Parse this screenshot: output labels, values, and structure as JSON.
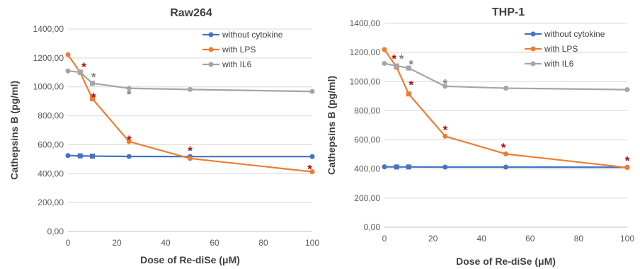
{
  "chart_data": [
    {
      "type": "line",
      "title": "Raw264",
      "xlabel": "Dose of Re-diSe (μM)",
      "ylabel": "Cathepsins  B (pg/ml)",
      "xlim": [
        0,
        100
      ],
      "ylim": [
        0,
        1400
      ],
      "xticks": [
        "0",
        "20",
        "40",
        "60",
        "80",
        "100"
      ],
      "yticks": [
        "0,00",
        "200,00",
        "400,00",
        "600,00",
        "800,00",
        "1000,00",
        "1200,00",
        "1400,00"
      ],
      "legend_position": "top-right",
      "series": [
        {
          "name": "without cytokine",
          "color": "#4472C4",
          "x": [
            0,
            5,
            10,
            25,
            50,
            100
          ],
          "y": [
            525,
            523,
            521,
            519,
            518,
            518
          ]
        },
        {
          "name": "with LPS",
          "color": "#ED7D31",
          "x": [
            0,
            5,
            10,
            25,
            50,
            100
          ],
          "y": [
            1222,
            1100,
            918,
            622,
            505,
            413
          ]
        },
        {
          "name": "with IL6",
          "color": "#A5A5A5",
          "x": [
            0,
            5,
            10,
            25,
            50,
            100
          ],
          "y": [
            1110,
            1102,
            1025,
            990,
            982,
            968
          ]
        }
      ],
      "annotations": [
        {
          "text": "*",
          "x": 6.5,
          "y": 1155,
          "color": "#C00000"
        },
        {
          "text": "*",
          "x": 10.5,
          "y": 1085,
          "color": "#808080"
        },
        {
          "text": "*",
          "x": 10.5,
          "y": 945,
          "color": "#C00000"
        },
        {
          "text": "*",
          "x": 25,
          "y": 965,
          "color": "#808080"
        },
        {
          "text": "*",
          "x": 25,
          "y": 650,
          "color": "#C00000"
        },
        {
          "text": "*",
          "x": 50,
          "y": 575,
          "color": "#C00000"
        },
        {
          "text": "*",
          "x": 99,
          "y": 448,
          "color": "#C00000"
        }
      ]
    },
    {
      "type": "line",
      "title": "THP-1",
      "xlabel": "Dose of Re-diSe (μM)",
      "ylabel": "Cathepsins  B (pg/ml)",
      "xlim": [
        0,
        100
      ],
      "ylim": [
        0,
        1400
      ],
      "xticks": [
        "0",
        "20",
        "40",
        "60",
        "80",
        "100"
      ],
      "yticks": [
        "0,00",
        "200,00",
        "400,00",
        "600,00",
        "800,00",
        "1000,00",
        "1200,00",
        "1400,00"
      ],
      "legend_position": "top-right",
      "series": [
        {
          "name": "without cytokine",
          "color": "#4472C4",
          "x": [
            0,
            5,
            10,
            25,
            50,
            100
          ],
          "y": [
            415,
            414,
            414,
            413,
            413,
            412
          ]
        },
        {
          "name": "with LPS",
          "color": "#ED7D31",
          "x": [
            0,
            5,
            10,
            25,
            50,
            100
          ],
          "y": [
            1220,
            1100,
            915,
            625,
            503,
            410
          ]
        },
        {
          "name": "with IL6",
          "color": "#A5A5A5",
          "x": [
            0,
            5,
            10,
            25,
            50,
            100
          ],
          "y": [
            1125,
            1108,
            1093,
            968,
            955,
            945
          ]
        }
      ],
      "annotations": [
        {
          "text": "*",
          "x": 4,
          "y": 1175,
          "color": "#C00000"
        },
        {
          "text": "*",
          "x": 7,
          "y": 1175,
          "color": "#808080"
        },
        {
          "text": "*",
          "x": 11,
          "y": 1135,
          "color": "#808080"
        },
        {
          "text": "*",
          "x": 11,
          "y": 995,
          "color": "#C00000"
        },
        {
          "text": "*",
          "x": 25,
          "y": 1005,
          "color": "#808080"
        },
        {
          "text": "*",
          "x": 25,
          "y": 685,
          "color": "#C00000"
        },
        {
          "text": "*",
          "x": 49,
          "y": 565,
          "color": "#C00000"
        },
        {
          "text": "*",
          "x": 100,
          "y": 475,
          "color": "#C00000"
        }
      ]
    }
  ]
}
